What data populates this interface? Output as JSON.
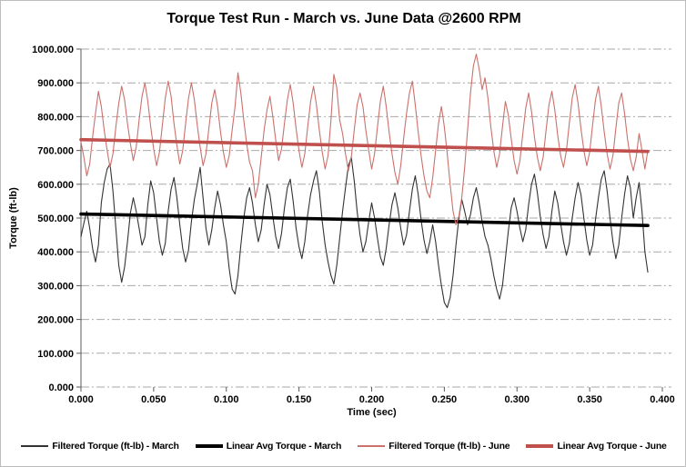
{
  "window": {
    "background": "#ffffff",
    "border_color": "#bdbdbd"
  },
  "chart_data": {
    "type": "line",
    "title": "Torque Test Run - March vs. June Data @2600 RPM",
    "xlabel": "Time (sec)",
    "ylabel": "Torque (ft-lb)",
    "xlim": [
      0.0,
      0.4
    ],
    "ylim": [
      0,
      1000
    ],
    "x_tick_step": 0.05,
    "y_tick_step": 100,
    "x_tick_labels": [
      "0.000",
      "0.050",
      "0.100",
      "0.150",
      "0.200",
      "0.250",
      "0.300",
      "0.350",
      "0.400"
    ],
    "y_tick_labels": [
      "0.000",
      "100.000",
      "200.000",
      "300.000",
      "400.000",
      "500.000",
      "600.000",
      "700.000",
      "800.000",
      "900.000",
      "1000.000"
    ],
    "grid": "horizontal-dashed",
    "gridline_color": "#a9a9a9",
    "axis_color": "#5a5a5a",
    "legend_position": "bottom",
    "series": [
      {
        "name": "Filtered Torque (ft-lb) - March",
        "color": "#333333",
        "stroke_width": 1.1,
        "x_start": 0.0,
        "x_step": 0.002,
        "values": [
          445,
          485,
          520,
          470,
          410,
          370,
          420,
          545,
          605,
          645,
          660,
          580,
          470,
          360,
          310,
          355,
          430,
          515,
          560,
          520,
          470,
          420,
          445,
          540,
          610,
          575,
          500,
          430,
          390,
          425,
          520,
          585,
          620,
          560,
          480,
          410,
          370,
          405,
          490,
          555,
          600,
          650,
          560,
          470,
          420,
          465,
          530,
          580,
          540,
          480,
          430,
          350,
          290,
          275,
          330,
          420,
          500,
          560,
          590,
          545,
          480,
          430,
          465,
          540,
          600,
          570,
          505,
          445,
          410,
          455,
          530,
          590,
          615,
          550,
          470,
          415,
          380,
          430,
          510,
          570,
          610,
          640,
          580,
          490,
          420,
          370,
          330,
          305,
          360,
          440,
          520,
          590,
          655,
          680,
          610,
          520,
          450,
          400,
          430,
          490,
          545,
          500,
          440,
          385,
          360,
          410,
          480,
          540,
          575,
          530,
          470,
          420,
          450,
          520,
          585,
          625,
          570,
          495,
          435,
          395,
          430,
          480,
          430,
          360,
          300,
          250,
          235,
          265,
          330,
          420,
          500,
          555,
          520,
          480,
          510,
          560,
          590,
          545,
          490,
          445,
          420,
          380,
          330,
          290,
          260,
          300,
          380,
          460,
          530,
          560,
          520,
          470,
          430,
          465,
          540,
          600,
          630,
          575,
          505,
          450,
          410,
          445,
          520,
          580,
          545,
          485,
          430,
          390,
          425,
          500,
          560,
          605,
          570,
          500,
          435,
          390,
          420,
          495,
          560,
          615,
          640,
          580,
          500,
          430,
          380,
          420,
          500,
          570,
          625,
          590,
          500,
          560,
          605,
          520,
          400,
          340
        ]
      },
      {
        "name": "Linear Avg Torque - March",
        "color": "#000000",
        "stroke_width": 3.6,
        "x": [
          0.0,
          0.39
        ],
        "values": [
          512,
          478
        ]
      },
      {
        "name": "Filtered Torque (ft-lb) - June",
        "color": "#cb716c",
        "stroke_width": 1.1,
        "x_start": 0.0,
        "x_step": 0.002,
        "values": [
          725,
          680,
          625,
          660,
          740,
          810,
          875,
          830,
          760,
          700,
          650,
          690,
          770,
          840,
          890,
          850,
          780,
          720,
          670,
          710,
          790,
          860,
          900,
          845,
          770,
          705,
          655,
          695,
          775,
          855,
          905,
          860,
          780,
          715,
          660,
          700,
          780,
          855,
          900,
          850,
          775,
          710,
          655,
          690,
          765,
          840,
          880,
          830,
          755,
          695,
          650,
          685,
          760,
          830,
          930,
          870,
          790,
          720,
          665,
          640,
          560,
          600,
          680,
          760,
          820,
          860,
          800,
          730,
          670,
          705,
          780,
          850,
          895,
          840,
          765,
          700,
          650,
          690,
          770,
          845,
          890,
          835,
          760,
          695,
          645,
          685,
          790,
          925,
          885,
          790,
          750,
          690,
          640,
          680,
          760,
          835,
          870,
          830,
          760,
          700,
          645,
          690,
          770,
          845,
          890,
          830,
          755,
          690,
          635,
          600,
          655,
          735,
          810,
          870,
          905,
          835,
          755,
          685,
          625,
          580,
          560,
          620,
          700,
          780,
          830,
          770,
          690,
          600,
          520,
          480,
          505,
          560,
          650,
          760,
          870,
          950,
          985,
          940,
          880,
          915,
          855,
          770,
          700,
          650,
          690,
          770,
          845,
          805,
          735,
          670,
          630,
          670,
          750,
          825,
          870,
          815,
          740,
          680,
          640,
          680,
          760,
          835,
          875,
          820,
          745,
          685,
          650,
          700,
          780,
          855,
          895,
          840,
          765,
          700,
          655,
          695,
          775,
          850,
          890,
          830,
          755,
          690,
          645,
          685,
          765,
          840,
          870,
          810,
          735,
          675,
          640,
          680,
          750,
          700,
          645,
          700
        ]
      },
      {
        "name": "Linear Avg Torque - June",
        "color": "#c0504d",
        "stroke_width": 3.6,
        "x": [
          0.0,
          0.39
        ],
        "values": [
          732,
          697
        ]
      }
    ]
  }
}
